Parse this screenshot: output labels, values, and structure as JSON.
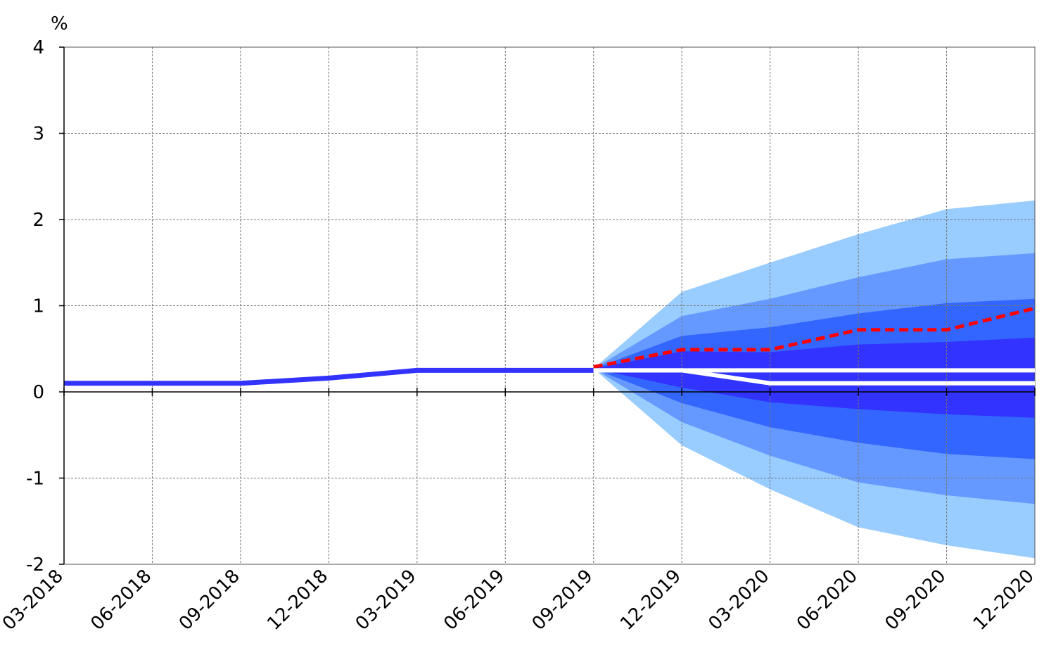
{
  "chart_data": {
    "type": "area",
    "title": "",
    "xlabel": "",
    "ylabel": "%",
    "ylim": [
      -2,
      4
    ],
    "yticks": [
      -2,
      -1,
      0,
      1,
      2,
      3,
      4
    ],
    "x": [
      "03-2018",
      "06-2018",
      "09-2018",
      "12-2018",
      "03-2019",
      "06-2019",
      "09-2019",
      "12-2019",
      "03-2020",
      "06-2020",
      "09-2020",
      "12-2020"
    ],
    "grid": true,
    "legend": "none",
    "series": [
      {
        "role": "history",
        "style": "solid",
        "color": "#3333ff",
        "x": [
          "03-2018",
          "06-2018",
          "09-2018",
          "12-2018",
          "03-2019",
          "06-2019",
          "09-2019"
        ],
        "values": [
          0.1,
          0.1,
          0.1,
          0.16,
          0.25,
          0.25,
          0.25
        ]
      },
      {
        "role": "forecast",
        "style": "dashed",
        "color": "#ff0000",
        "x": [
          "09-2019",
          "12-2019",
          "03-2020",
          "06-2020",
          "09-2020",
          "12-2020"
        ],
        "values": [
          0.29,
          0.49,
          0.49,
          0.72,
          0.72,
          0.97
        ]
      },
      {
        "role": "white-line",
        "style": "solid",
        "color": "#ffffff",
        "x": [
          "09-2019",
          "12-2019",
          "03-2020",
          "06-2020",
          "09-2020",
          "12-2020"
        ],
        "values": [
          0.25,
          0.25,
          0.25,
          0.25,
          0.25,
          0.25
        ]
      },
      {
        "role": "white-line",
        "style": "solid",
        "color": "#ffffff",
        "x": [
          "09-2019",
          "12-2019",
          "03-2020",
          "06-2020",
          "09-2020",
          "12-2020"
        ],
        "values": [
          0.25,
          0.25,
          0.1,
          0.1,
          0.1,
          0.1
        ]
      }
    ],
    "fan_bands": [
      {
        "color": "#99ccff",
        "x": [
          "09-2019",
          "12-2019",
          "03-2020",
          "06-2020",
          "09-2020",
          "12-2020"
        ],
        "upper": [
          0.27,
          1.16,
          1.5,
          1.83,
          2.12,
          2.22
        ],
        "lower": [
          0.27,
          -0.62,
          -1.13,
          -1.57,
          -1.78,
          -1.93
        ]
      },
      {
        "color": "#6699ff",
        "x": [
          "09-2019",
          "12-2019",
          "03-2020",
          "06-2020",
          "09-2020",
          "12-2020"
        ],
        "upper": [
          0.27,
          0.88,
          1.08,
          1.33,
          1.54,
          1.61
        ],
        "lower": [
          0.27,
          -0.35,
          -0.74,
          -1.05,
          -1.2,
          -1.3
        ]
      },
      {
        "color": "#3366ff",
        "x": [
          "09-2019",
          "12-2019",
          "03-2020",
          "06-2020",
          "09-2020",
          "12-2020"
        ],
        "upper": [
          0.27,
          0.65,
          0.75,
          0.91,
          1.03,
          1.08
        ],
        "lower": [
          0.27,
          -0.13,
          -0.41,
          -0.59,
          -0.72,
          -0.78
        ]
      },
      {
        "color": "#3333ff",
        "x": [
          "09-2019",
          "12-2019",
          "03-2020",
          "06-2020",
          "09-2020",
          "12-2020"
        ],
        "upper": [
          0.27,
          0.47,
          0.46,
          0.55,
          0.58,
          0.63
        ],
        "lower": [
          0.27,
          0.05,
          -0.12,
          -0.2,
          -0.26,
          -0.3
        ]
      }
    ]
  }
}
